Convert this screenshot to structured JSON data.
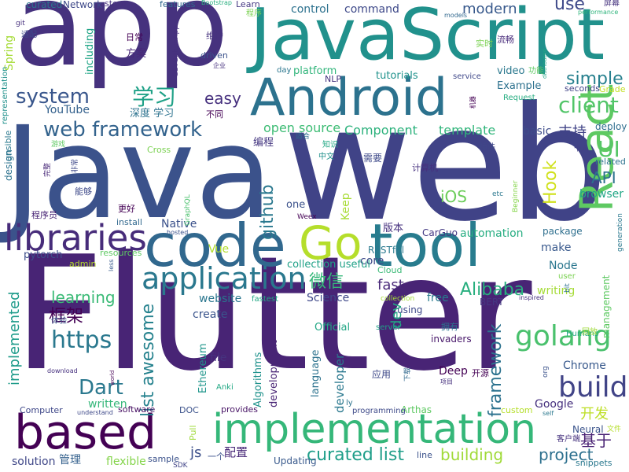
{
  "words": [
    {
      "text": "Flutter",
      "color": "#482475"
    },
    {
      "text": "Java",
      "color": "#3b528b"
    },
    {
      "text": "web",
      "color": "#404387"
    },
    {
      "text": "app",
      "color": "#46327e"
    },
    {
      "text": "JavaScript",
      "color": "#21918c"
    },
    {
      "text": "Android",
      "color": "#2c728e"
    },
    {
      "text": "code",
      "color": "#31688e"
    },
    {
      "text": "tool",
      "color": "#287c8e"
    },
    {
      "text": "React",
      "color": "#5ec962"
    },
    {
      "text": "Go",
      "color": "#b5de2b"
    },
    {
      "text": "implementation",
      "color": "#35b779"
    },
    {
      "text": "based",
      "color": "#440154"
    },
    {
      "text": "libraries",
      "color": "#472c7a"
    },
    {
      "text": "application",
      "color": "#2a788e"
    },
    {
      "text": "golang",
      "color": "#4ac16d"
    },
    {
      "text": "build",
      "color": "#414487"
    },
    {
      "text": "web framework",
      "color": "#33638d"
    },
    {
      "text": "system",
      "color": "#39568c"
    },
    {
      "text": "https",
      "color": "#2a788e"
    },
    {
      "text": "Dart",
      "color": "#2a788e"
    },
    {
      "text": "github",
      "color": "#2a788e"
    },
    {
      "text": "client",
      "color": "#52c569"
    },
    {
      "text": "curated list",
      "color": "#1f9e89"
    },
    {
      "text": "list awesome",
      "color": "#26828e"
    },
    {
      "text": "framework",
      "color": "#2c728e"
    },
    {
      "text": "project",
      "color": "#2d708e"
    },
    {
      "text": "building",
      "color": "#a0da39"
    },
    {
      "text": "learning",
      "color": "#3aba76"
    },
    {
      "text": "微信",
      "color": "#35b779"
    },
    {
      "text": "框架",
      "color": "#440154"
    },
    {
      "text": "学习",
      "color": "#1fa187"
    },
    {
      "text": "Alibaba",
      "color": "#29af7f"
    },
    {
      "text": "UI",
      "color": "#56c667"
    },
    {
      "text": "API",
      "color": "#2c728e"
    },
    {
      "text": "Hook",
      "color": "#d0e11c"
    },
    {
      "text": "iOS",
      "color": "#6ccd5a"
    },
    {
      "text": "easy",
      "color": "#46307e"
    },
    {
      "text": "modern",
      "color": "#38598c"
    },
    {
      "text": "simple",
      "color": "#27808e"
    },
    {
      "text": "use",
      "color": "#3e4989"
    },
    {
      "text": "dev",
      "color": "#22a884"
    },
    {
      "text": "fast",
      "color": "#482878"
    },
    {
      "text": "Component",
      "color": "#2db27d"
    },
    {
      "text": "open source",
      "color": "#3dbc74"
    },
    {
      "text": "template",
      "color": "#31b57b"
    },
    {
      "text": "automation",
      "color": "#26ad81"
    },
    {
      "text": "Keep",
      "color": "#a8db34"
    },
    {
      "text": "Native",
      "color": "#3b518b"
    },
    {
      "text": "Chrome",
      "color": "#38598c"
    },
    {
      "text": "Google",
      "color": "#46307e"
    },
    {
      "text": "基于",
      "color": "#482173"
    },
    {
      "text": "开发",
      "color": "#bddf26"
    },
    {
      "text": "支持",
      "color": "#404387"
    },
    {
      "text": "command",
      "color": "#3e4989"
    },
    {
      "text": "control",
      "color": "#2c718e"
    },
    {
      "text": "platform",
      "color": "#31b57b"
    },
    {
      "text": "tutorials",
      "color": "#20928c"
    },
    {
      "text": "video",
      "color": "#2a788e"
    },
    {
      "text": "Example",
      "color": "#2d718e"
    },
    {
      "text": "basic",
      "color": "#3e4c8a"
    },
    {
      "text": "deploy",
      "color": "#2e6e8e"
    },
    {
      "text": "browser",
      "color": "#21a685"
    },
    {
      "text": "make",
      "color": "#38588c"
    },
    {
      "text": "Node",
      "color": "#2a768e"
    },
    {
      "text": "core",
      "color": "#3e4a89"
    },
    {
      "text": "Vue",
      "color": "#b2dd2d"
    },
    {
      "text": "create",
      "color": "#3a548c"
    },
    {
      "text": "website",
      "color": "#2a768e"
    },
    {
      "text": "Science",
      "color": "#3f4889"
    },
    {
      "text": "free",
      "color": "#297b8e"
    },
    {
      "text": "writing",
      "color": "#a5db36"
    },
    {
      "text": "management",
      "color": "#5ec962"
    },
    {
      "text": "implemented",
      "color": "#1e9b8a"
    },
    {
      "text": "written",
      "color": "#35b779"
    },
    {
      "text": "flexible",
      "color": "#84d44b"
    },
    {
      "text": "js",
      "color": "#3c4f8a"
    },
    {
      "text": "solution",
      "color": "#3f4788"
    },
    {
      "text": "YouTube",
      "color": "#34618d"
    },
    {
      "text": "Spring",
      "color": "#a5db36"
    },
    {
      "text": "including",
      "color": "#20a486"
    },
    {
      "text": "Ethereum",
      "color": "#1f968b"
    },
    {
      "text": "Algorithms",
      "color": "#20928c"
    },
    {
      "text": "development",
      "color": "#482475"
    },
    {
      "text": "language",
      "color": "#2c728e"
    },
    {
      "text": "developer",
      "color": "#2a788e"
    },
    {
      "text": "file",
      "color": "#46337f"
    },
    {
      "text": "Deep",
      "color": "#440154"
    },
    {
      "text": "Neural",
      "color": "#3a538b"
    },
    {
      "text": "pytorch",
      "color": "#3d4e8a"
    },
    {
      "text": "one",
      "color": "#3b518b"
    },
    {
      "text": "版本",
      "color": "#46307e"
    },
    {
      "text": "配置",
      "color": "#482878"
    },
    {
      "text": "Updating",
      "color": "#38598c"
    },
    {
      "text": "collection useful",
      "color": "#1fa187"
    },
    {
      "text": "RESTful",
      "color": "#29798e"
    },
    {
      "text": "Cloud",
      "color": "#3aba76"
    },
    {
      "text": "CarGuo",
      "color": "#443983"
    },
    {
      "text": "package",
      "color": "#2e6f8e"
    },
    {
      "text": "Official",
      "color": "#22a785"
    },
    {
      "text": "invaders",
      "color": "#48186a"
    },
    {
      "text": "BERT",
      "color": "#453781"
    },
    {
      "text": "using",
      "color": "#3e4989"
    },
    {
      "text": "Computer",
      "color": "#3f4889"
    },
    {
      "text": "software",
      "color": "#471063"
    },
    {
      "text": "provides",
      "color": "#471365"
    },
    {
      "text": "DOC",
      "color": "#3b528b"
    },
    {
      "text": "管理",
      "color": "#34618d"
    },
    {
      "text": "Arthas",
      "color": "#5ec962"
    },
    {
      "text": "programming",
      "color": "#3e4a89"
    },
    {
      "text": "custom",
      "color": "#b5de2b"
    },
    {
      "text": "snippets",
      "color": "#2a788e"
    },
    {
      "text": "line",
      "color": "#3b528b"
    },
    {
      "text": "sample",
      "color": "#3b528b"
    },
    {
      "text": "SDK",
      "color": "#414487"
    },
    {
      "text": "Pull",
      "color": "#9fda3a"
    },
    {
      "text": "curated",
      "color": "#2c728e"
    },
    {
      "text": "Network",
      "color": "#3e4989"
    },
    {
      "text": "store",
      "color": "#46307e"
    },
    {
      "text": "features",
      "color": "#31688e"
    },
    {
      "text": "Bootstrap",
      "color": "#29af7f"
    },
    {
      "text": "Learn",
      "color": "#453882"
    },
    {
      "text": "程序",
      "color": "#7ad151"
    },
    {
      "text": "日常",
      "color": "#440154"
    },
    {
      "text": "方案",
      "color": "#482878"
    },
    {
      "text": "维护",
      "color": "#46327e"
    },
    {
      "text": "driven",
      "color": "#3b528b"
    },
    {
      "text": "企业",
      "color": "#46307e"
    },
    {
      "text": "深度 学习",
      "color": "#2c728e"
    },
    {
      "text": "不同",
      "color": "#440154"
    },
    {
      "text": "编程",
      "color": "#453781"
    },
    {
      "text": "适合",
      "color": "#2e6e8e"
    },
    {
      "text": "知识",
      "color": "#22a884"
    },
    {
      "text": "中文",
      "color": "#21918c"
    },
    {
      "text": "需要",
      "color": "#3e4989"
    },
    {
      "text": "计算机",
      "color": "#46307e"
    },
    {
      "text": "插件",
      "color": "#3f4788"
    },
    {
      "text": "个人",
      "color": "#424086"
    },
    {
      "text": "related",
      "color": "#2c728e"
    },
    {
      "text": "实时",
      "color": "#7ad151"
    },
    {
      "text": "流畅",
      "color": "#472a7a"
    },
    {
      "text": "功能",
      "color": "#5ec962"
    },
    {
      "text": "屏幕",
      "color": "#46337f"
    },
    {
      "text": "seconds",
      "color": "#404387"
    },
    {
      "text": "Grade",
      "color": "#c2df23"
    },
    {
      "text": "service",
      "color": "#3f4889"
    },
    {
      "text": "NLP",
      "color": "#46337f"
    },
    {
      "text": "day",
      "color": "#2a768e"
    },
    {
      "text": "models",
      "color": "#31688e"
    },
    {
      "text": "performance",
      "color": "#2fb47c"
    },
    {
      "text": "distributed",
      "color": "#21a685"
    },
    {
      "text": "Request",
      "color": "#27ad81"
    },
    {
      "text": "Beginner",
      "color": "#85d54a"
    },
    {
      "text": "etc",
      "color": "#2a778e"
    },
    {
      "text": "GraphQL",
      "color": "#4ac16d"
    },
    {
      "text": "Cross",
      "color": "#7ad151"
    },
    {
      "text": "hosted",
      "color": "#3b528b"
    },
    {
      "text": "Weex",
      "color": "#440154"
    },
    {
      "text": "install",
      "color": "#31688e"
    },
    {
      "text": "更好",
      "color": "#440154"
    },
    {
      "text": "能够",
      "color": "#3e4989"
    },
    {
      "text": "程序员",
      "color": "#482475"
    },
    {
      "text": "resources",
      "color": "#5ec962"
    },
    {
      "text": "admin",
      "color": "#b5de2b"
    },
    {
      "text": "less",
      "color": "#38598c"
    },
    {
      "text": "fastest",
      "color": "#22a884"
    },
    {
      "text": "inspired",
      "color": "#46307e"
    },
    {
      "text": "bit",
      "color": "#2d718e"
    },
    {
      "text": "Humans",
      "color": "#22a884"
    },
    {
      "text": "回放",
      "color": "#9fda3a"
    },
    {
      "text": "server",
      "color": "#1fa187"
    },
    {
      "text": "collection",
      "color": "#a5db36"
    },
    {
      "text": "拥有",
      "color": "#2c728e"
    },
    {
      "text": "应用",
      "color": "#3e4989"
    },
    {
      "text": "下载",
      "color": "#31688e"
    },
    {
      "text": "项目",
      "color": "#46307e"
    },
    {
      "text": "开源",
      "color": "#440154"
    },
    {
      "text": "org",
      "color": "#3b528b"
    },
    {
      "text": "self",
      "color": "#2a788e"
    },
    {
      "text": "客户端",
      "color": "#46327e"
    },
    {
      "text": "文件",
      "color": "#b5de2b"
    },
    {
      "text": "understand",
      "color": "#3e4989"
    },
    {
      "text": "world",
      "color": "#440154"
    },
    {
      "text": "Anki",
      "color": "#22a884"
    },
    {
      "text": "download",
      "color": "#46307e"
    },
    {
      "text": "体验",
      "color": "#3b528b"
    },
    {
      "text": "一个",
      "color": "#3b528b"
    },
    {
      "text": "ly",
      "color": "#2c728e"
    },
    {
      "text": "完整",
      "color": "#482878"
    },
    {
      "text": "非常",
      "color": "#3e4989"
    },
    {
      "text": "游戏",
      "color": "#5ec962"
    },
    {
      "text": "ansible",
      "color": "#2a788e"
    },
    {
      "text": "design",
      "color": "#2c728e"
    },
    {
      "text": "representation",
      "color": "#21918c"
    },
    {
      "text": "适配",
      "color": "#3e4989"
    },
    {
      "text": "git",
      "color": "#46307e"
    },
    {
      "text": "GSYGithubApp",
      "color": "#46307e"
    },
    {
      "text": "generation",
      "color": "#2a788e"
    },
    {
      "text": "user",
      "color": "#7ad151"
    },
    {
      "text": "机器",
      "color": "#440154"
    }
  ]
}
